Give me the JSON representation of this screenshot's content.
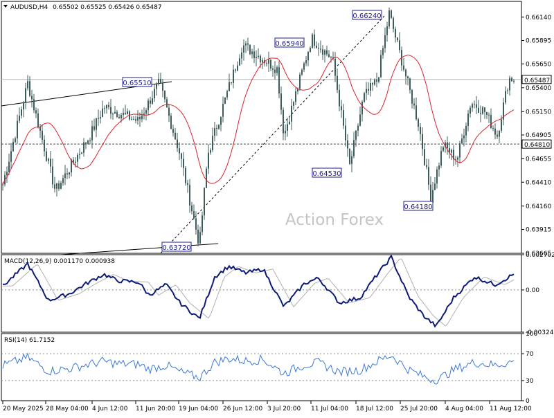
{
  "header": {
    "symbol_label": "AUDUSD,H4",
    "ohlc": "0.65502 0.65525 0.65426 0.65487"
  },
  "watermark": "Action Forex",
  "colors": {
    "candles": "#3d5c5c",
    "ma": "#d9232b",
    "macd_line": "#0d1a7a",
    "macd_signal": "#b0b0b0",
    "rsi_line": "#3b78d8",
    "annotation": "#1f1f8f",
    "grid_dash": "#8a8a8a"
  },
  "chart_data": [
    {
      "type": "candlestick",
      "panel": "price",
      "ylim": [
        0.63665,
        0.66305
      ],
      "y_ticks": [
        "0.66140",
        "0.65895",
        "0.65650",
        "0.65400",
        "0.65150",
        "0.64905",
        "0.64655",
        "0.64410",
        "0.64160",
        "0.63915",
        "0.63665"
      ],
      "current_price": "0.65487",
      "marked_level": "0.64810",
      "annotations": [
        "0.66240",
        "0.65940",
        "0.65510",
        "0.64530",
        "0.64180",
        "0.63720"
      ],
      "x_tick_labels": [
        "20 May 2025",
        "28 May 04:00",
        "4 Jun 12:00",
        "11 Jun 20:00",
        "19 Jun 04:00",
        "26 Jun 12:00",
        "3 Jul 20:00",
        "11 Jul 04:00",
        "18 Jul 12:00",
        "25 Jul 20:00",
        "4 Aug 04:00",
        "11 Aug 12:00"
      ],
      "trendlines": [
        "upper resistance line",
        "lower support line",
        "dashed projection line"
      ],
      "moving_average": "red"
    },
    {
      "type": "line",
      "panel": "macd",
      "label": "MACD(12,26,9) 0.001170 0.000938",
      "ylim": [
        -0.003241,
        0.002702
      ],
      "y_ticks": [
        "0.002702",
        "0.00",
        "-0.003241"
      ],
      "series": [
        {
          "name": "MACD",
          "color": "#0d1a7a"
        },
        {
          "name": "Signal",
          "color": "#b0b0b0"
        }
      ]
    },
    {
      "type": "line",
      "panel": "rsi",
      "label": "RSI(14) 61.7152",
      "ylim": [
        0,
        100
      ],
      "y_ticks": [
        "100",
        "70",
        "30",
        "0"
      ],
      "levels": [
        70,
        30
      ],
      "series": [
        {
          "name": "RSI(14)",
          "value": 61.7152,
          "color": "#3b78d8"
        }
      ]
    }
  ]
}
